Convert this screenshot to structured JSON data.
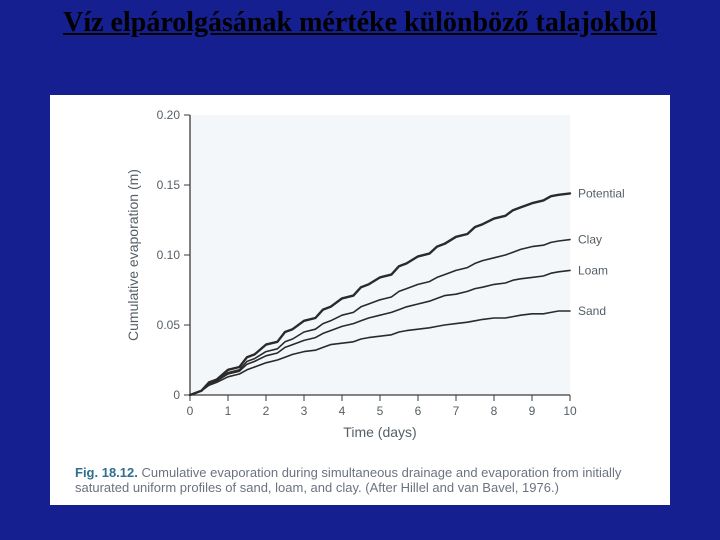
{
  "slide": {
    "background_color": "#151f8f",
    "title_text": "Víz elpárolgásának mértéke különböző talajokból",
    "title_color": "#000000",
    "title_fontsize": 28
  },
  "figure": {
    "panel_bg": "#ffffff",
    "caption_prefix": "Fig. 18.12.",
    "caption_text": "Cumulative evaporation during simultaneous drainage and evaporation from initially saturated uniform profiles of sand, loam, and clay. (After Hillel and van Bavel, 1976.)",
    "caption_color": "#6b7280",
    "caption_fontsize": 13,
    "caption_prefix_color": "#2f6f8f"
  },
  "chart": {
    "type": "line",
    "background_color": "#f3f7fa",
    "axis_color": "#3a3a3a",
    "tick_font": 12,
    "label_font": 14,
    "label_color": "#555f66",
    "line_color": "#2a2a2a",
    "line_width": 1.6,
    "potential_line_width": 2.4,
    "xlabel": "Time (days)",
    "ylabel": "Cumulative evaporation (m)",
    "xlim": [
      0,
      10
    ],
    "ylim": [
      0,
      0.2
    ],
    "xticks": [
      0,
      1,
      2,
      3,
      4,
      5,
      6,
      7,
      8,
      9,
      10
    ],
    "yticks": [
      0,
      0.05,
      0.1,
      0.15,
      0.2
    ],
    "ytick_labels": [
      "0",
      "0.05",
      "0.10",
      "0.15",
      "0.20"
    ],
    "series": [
      {
        "name": "Potential",
        "label": "Potential",
        "values": [
          [
            0.0,
            0.0
          ],
          [
            0.3,
            0.003
          ],
          [
            0.5,
            0.009
          ],
          [
            0.7,
            0.011
          ],
          [
            1.0,
            0.018
          ],
          [
            1.3,
            0.02
          ],
          [
            1.5,
            0.027
          ],
          [
            1.7,
            0.029
          ],
          [
            2.0,
            0.036
          ],
          [
            2.3,
            0.038
          ],
          [
            2.5,
            0.045
          ],
          [
            2.7,
            0.047
          ],
          [
            3.0,
            0.053
          ],
          [
            3.3,
            0.055
          ],
          [
            3.5,
            0.061
          ],
          [
            3.7,
            0.063
          ],
          [
            4.0,
            0.069
          ],
          [
            4.3,
            0.071
          ],
          [
            4.5,
            0.077
          ],
          [
            4.7,
            0.079
          ],
          [
            5.0,
            0.084
          ],
          [
            5.3,
            0.086
          ],
          [
            5.5,
            0.092
          ],
          [
            5.7,
            0.094
          ],
          [
            6.0,
            0.099
          ],
          [
            6.3,
            0.101
          ],
          [
            6.5,
            0.106
          ],
          [
            6.7,
            0.108
          ],
          [
            7.0,
            0.113
          ],
          [
            7.3,
            0.115
          ],
          [
            7.5,
            0.12
          ],
          [
            7.7,
            0.122
          ],
          [
            8.0,
            0.126
          ],
          [
            8.3,
            0.128
          ],
          [
            8.5,
            0.132
          ],
          [
            8.7,
            0.134
          ],
          [
            9.0,
            0.137
          ],
          [
            9.3,
            0.139
          ],
          [
            9.5,
            0.142
          ],
          [
            9.7,
            0.143
          ],
          [
            10.0,
            0.144
          ]
        ]
      },
      {
        "name": "Clay",
        "label": "Clay",
        "values": [
          [
            0.0,
            0.0
          ],
          [
            0.3,
            0.003
          ],
          [
            0.5,
            0.008
          ],
          [
            0.7,
            0.01
          ],
          [
            1.0,
            0.016
          ],
          [
            1.3,
            0.018
          ],
          [
            1.5,
            0.024
          ],
          [
            1.7,
            0.026
          ],
          [
            2.0,
            0.031
          ],
          [
            2.3,
            0.033
          ],
          [
            2.5,
            0.038
          ],
          [
            2.7,
            0.04
          ],
          [
            3.0,
            0.045
          ],
          [
            3.3,
            0.047
          ],
          [
            3.5,
            0.051
          ],
          [
            3.7,
            0.053
          ],
          [
            4.0,
            0.057
          ],
          [
            4.3,
            0.059
          ],
          [
            4.5,
            0.063
          ],
          [
            4.7,
            0.065
          ],
          [
            5.0,
            0.068
          ],
          [
            5.3,
            0.07
          ],
          [
            5.5,
            0.074
          ],
          [
            5.7,
            0.076
          ],
          [
            6.0,
            0.079
          ],
          [
            6.3,
            0.081
          ],
          [
            6.5,
            0.084
          ],
          [
            6.7,
            0.086
          ],
          [
            7.0,
            0.089
          ],
          [
            7.3,
            0.091
          ],
          [
            7.5,
            0.094
          ],
          [
            7.7,
            0.096
          ],
          [
            8.0,
            0.098
          ],
          [
            8.3,
            0.1
          ],
          [
            8.5,
            0.102
          ],
          [
            8.7,
            0.104
          ],
          [
            9.0,
            0.106
          ],
          [
            9.3,
            0.107
          ],
          [
            9.5,
            0.109
          ],
          [
            9.7,
            0.11
          ],
          [
            10.0,
            0.111
          ]
        ]
      },
      {
        "name": "Loam",
        "label": "Loam",
        "values": [
          [
            0.0,
            0.0
          ],
          [
            0.3,
            0.003
          ],
          [
            0.5,
            0.008
          ],
          [
            0.7,
            0.01
          ],
          [
            1.0,
            0.015
          ],
          [
            1.3,
            0.017
          ],
          [
            1.5,
            0.022
          ],
          [
            1.7,
            0.024
          ],
          [
            2.0,
            0.028
          ],
          [
            2.3,
            0.03
          ],
          [
            2.5,
            0.034
          ],
          [
            2.7,
            0.036
          ],
          [
            3.0,
            0.039
          ],
          [
            3.3,
            0.041
          ],
          [
            3.5,
            0.044
          ],
          [
            3.7,
            0.046
          ],
          [
            4.0,
            0.049
          ],
          [
            4.3,
            0.051
          ],
          [
            4.5,
            0.053
          ],
          [
            4.7,
            0.055
          ],
          [
            5.0,
            0.057
          ],
          [
            5.3,
            0.059
          ],
          [
            5.5,
            0.061
          ],
          [
            5.7,
            0.063
          ],
          [
            6.0,
            0.065
          ],
          [
            6.3,
            0.067
          ],
          [
            6.5,
            0.069
          ],
          [
            6.7,
            0.071
          ],
          [
            7.0,
            0.072
          ],
          [
            7.3,
            0.074
          ],
          [
            7.5,
            0.076
          ],
          [
            7.7,
            0.077
          ],
          [
            8.0,
            0.079
          ],
          [
            8.3,
            0.08
          ],
          [
            8.5,
            0.082
          ],
          [
            8.7,
            0.083
          ],
          [
            9.0,
            0.084
          ],
          [
            9.3,
            0.085
          ],
          [
            9.5,
            0.087
          ],
          [
            9.7,
            0.088
          ],
          [
            10.0,
            0.089
          ]
        ]
      },
      {
        "name": "Sand",
        "label": "Sand",
        "values": [
          [
            0.0,
            0.0
          ],
          [
            0.3,
            0.003
          ],
          [
            0.5,
            0.007
          ],
          [
            0.7,
            0.009
          ],
          [
            1.0,
            0.013
          ],
          [
            1.3,
            0.015
          ],
          [
            1.5,
            0.018
          ],
          [
            1.7,
            0.02
          ],
          [
            2.0,
            0.023
          ],
          [
            2.3,
            0.025
          ],
          [
            2.5,
            0.027
          ],
          [
            2.7,
            0.029
          ],
          [
            3.0,
            0.031
          ],
          [
            3.3,
            0.032
          ],
          [
            3.5,
            0.034
          ],
          [
            3.7,
            0.036
          ],
          [
            4.0,
            0.037
          ],
          [
            4.3,
            0.038
          ],
          [
            4.5,
            0.04
          ],
          [
            4.7,
            0.041
          ],
          [
            5.0,
            0.042
          ],
          [
            5.3,
            0.043
          ],
          [
            5.5,
            0.045
          ],
          [
            5.7,
            0.046
          ],
          [
            6.0,
            0.047
          ],
          [
            6.3,
            0.048
          ],
          [
            6.5,
            0.049
          ],
          [
            6.7,
            0.05
          ],
          [
            7.0,
            0.051
          ],
          [
            7.3,
            0.052
          ],
          [
            7.5,
            0.053
          ],
          [
            7.7,
            0.054
          ],
          [
            8.0,
            0.055
          ],
          [
            8.3,
            0.055
          ],
          [
            8.5,
            0.056
          ],
          [
            8.7,
            0.057
          ],
          [
            9.0,
            0.058
          ],
          [
            9.3,
            0.058
          ],
          [
            9.5,
            0.059
          ],
          [
            9.7,
            0.06
          ],
          [
            10.0,
            0.06
          ]
        ]
      }
    ]
  }
}
